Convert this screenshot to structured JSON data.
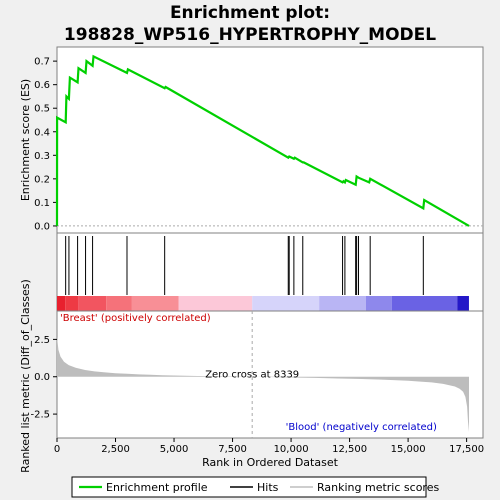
{
  "chart_data": {
    "type": "line",
    "title_line1": "Enrichment plot:",
    "title_line2": "198828_WP516_HYPERTROPHY_MODEL",
    "es_panel": {
      "ylabel": "Enrichment score (ES)",
      "ylim": [
        -0.03,
        0.76
      ],
      "yticks": [
        "0.0",
        "0.1",
        "0.2",
        "0.3",
        "0.4",
        "0.5",
        "0.6",
        "0.7"
      ],
      "ytick_values": [
        0.0,
        0.1,
        0.2,
        0.3,
        0.4,
        0.5,
        0.6,
        0.7
      ],
      "curve": [
        [
          0,
          0.0
        ],
        [
          5,
          0.46
        ],
        [
          370,
          0.44
        ],
        [
          400,
          0.55
        ],
        [
          510,
          0.54
        ],
        [
          550,
          0.63
        ],
        [
          880,
          0.61
        ],
        [
          920,
          0.67
        ],
        [
          1220,
          0.65
        ],
        [
          1260,
          0.7
        ],
        [
          1520,
          0.68
        ],
        [
          1560,
          0.72
        ],
        [
          2990,
          0.65
        ],
        [
          3030,
          0.665
        ],
        [
          4600,
          0.585
        ],
        [
          4640,
          0.59
        ],
        [
          9880,
          0.29
        ],
        [
          9920,
          0.295
        ],
        [
          10120,
          0.285
        ],
        [
          10160,
          0.29
        ],
        [
          10500,
          0.27
        ],
        [
          10540,
          0.27
        ],
        [
          12200,
          0.185
        ],
        [
          12240,
          0.19
        ],
        [
          12300,
          0.185
        ],
        [
          12340,
          0.195
        ],
        [
          12760,
          0.175
        ],
        [
          12800,
          0.21
        ],
        [
          12880,
          0.205
        ],
        [
          13340,
          0.185
        ],
        [
          13380,
          0.2
        ],
        [
          15650,
          0.075
        ],
        [
          15690,
          0.11
        ],
        [
          17600,
          0.0
        ]
      ]
    },
    "hits": [
      370,
      510,
      880,
      1220,
      1520,
      2990,
      4600,
      9880,
      9920,
      10120,
      10500,
      12200,
      12300,
      12760,
      12800,
      12880,
      13380,
      15650
    ],
    "metric_panel": {
      "ylabel": "Ranked list metric (Diff_of_Classes)",
      "ylim": [
        -4.1,
        4.4
      ],
      "yticks": [
        "2.5",
        "0.0",
        "-2.5"
      ],
      "ytick_values": [
        2.5,
        0.0,
        -2.5
      ],
      "points": [
        [
          0,
          2.7
        ],
        [
          60,
          1.8
        ],
        [
          150,
          1.35
        ],
        [
          300,
          1.0
        ],
        [
          500,
          0.78
        ],
        [
          800,
          0.6
        ],
        [
          1200,
          0.45
        ],
        [
          1600,
          0.36
        ],
        [
          2000,
          0.3
        ],
        [
          2500,
          0.24
        ],
        [
          3000,
          0.2
        ],
        [
          3500,
          0.16
        ],
        [
          4000,
          0.13
        ],
        [
          4500,
          0.1
        ],
        [
          5000,
          0.08
        ],
        [
          6000,
          0.05
        ],
        [
          7000,
          0.03
        ],
        [
          8339,
          0.0
        ],
        [
          9000,
          -0.02
        ],
        [
          10000,
          -0.05
        ],
        [
          11000,
          -0.08
        ],
        [
          12000,
          -0.12
        ],
        [
          13000,
          -0.15
        ],
        [
          14000,
          -0.2
        ],
        [
          15000,
          -0.27
        ],
        [
          16000,
          -0.38
        ],
        [
          16500,
          -0.48
        ],
        [
          17000,
          -0.65
        ],
        [
          17200,
          -0.8
        ],
        [
          17350,
          -1.0
        ],
        [
          17450,
          -1.35
        ],
        [
          17520,
          -2.0
        ],
        [
          17560,
          -3.0
        ],
        [
          17600,
          -3.7
        ]
      ]
    },
    "xlabel": "Rank in Ordered Dataset",
    "xlim": [
      0,
      18200
    ],
    "xticks": [
      "0",
      "2,500",
      "5,000",
      "7,500",
      "10,000",
      "12,500",
      "15,000",
      "17,500"
    ],
    "xtick_values": [
      0,
      2500,
      5000,
      7500,
      10000,
      12500,
      15000,
      17500
    ],
    "zero_cross_label": "Zero cross at 8339",
    "zero_cross_value": 8339,
    "dataset_size": 17600,
    "label_positive": "'Breast' (positively correlated)",
    "label_negative": "'Blood' (negatively correlated)",
    "colorbar": [
      {
        "start": 0,
        "end": 350,
        "color": "#e8202e"
      },
      {
        "start": 350,
        "end": 900,
        "color": "#ee3a44"
      },
      {
        "start": 900,
        "end": 2100,
        "color": "#f25560"
      },
      {
        "start": 2100,
        "end": 3200,
        "color": "#f5727a"
      },
      {
        "start": 3200,
        "end": 5200,
        "color": "#f88f96"
      },
      {
        "start": 5200,
        "end": 8339,
        "color": "#fcc8d8"
      },
      {
        "start": 8339,
        "end": 11200,
        "color": "#d6d4fa"
      },
      {
        "start": 11200,
        "end": 13200,
        "color": "#b9b5f4"
      },
      {
        "start": 13200,
        "end": 14300,
        "color": "#8e88ec"
      },
      {
        "start": 14300,
        "end": 17100,
        "color": "#6a62e4"
      },
      {
        "start": 17100,
        "end": 17600,
        "color": "#2418c8"
      }
    ],
    "colors": {
      "es_curve": "#00d000",
      "hits": "#000000",
      "metric_fill": "#bdbdbd",
      "zero_line": "#aaaaaa",
      "positive_label": "#cc0000",
      "negative_label": "#0000cc",
      "background": "#f0f0f0",
      "panel": "#ffffff"
    },
    "legend": [
      {
        "label": "Enrichment profile",
        "style": "green-line"
      },
      {
        "label": "Hits",
        "style": "black-line"
      },
      {
        "label": "Ranking metric scores",
        "style": "gray-line"
      }
    ]
  }
}
